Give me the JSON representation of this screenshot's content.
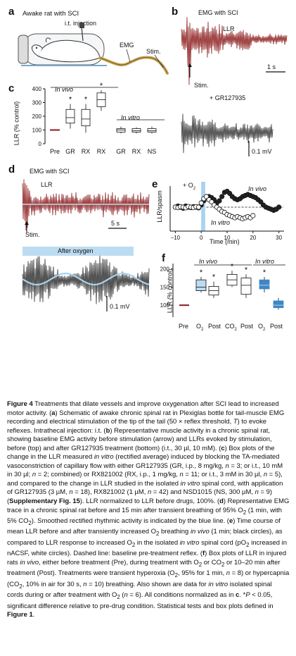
{
  "panels": {
    "a": {
      "letter": "a",
      "title": "Awake rat with SCI",
      "injection": "i.t. injection",
      "emg": "EMG",
      "stim": "Stim."
    },
    "b": {
      "letter": "b",
      "title": "EMG with SCI",
      "llr": "LLR",
      "stim": "Stim.",
      "time_scale": "1 s",
      "drug": "+ GR127935",
      "volt_scale": "0.1 mV"
    },
    "c": {
      "letter": "c",
      "in_vivo": "In vivo",
      "in_vitro": "In vitro",
      "ylabel": "LLR (% control)",
      "yticks": [
        "0",
        "100",
        "200",
        "300",
        "400"
      ],
      "categories": [
        "Pre",
        "GR",
        "RX",
        "RX",
        "GR",
        "RX",
        "NS"
      ],
      "star": "*"
    },
    "d": {
      "letter": "d",
      "title": "EMG with SCI",
      "llr": "LLR",
      "stim": "Stim.",
      "time_scale": "5 s",
      "after": "After oxygen",
      "volt_scale": "0.1 mV"
    },
    "e": {
      "letter": "e",
      "o2": "+ O",
      "o2_sub": "2",
      "in_vivo": "In vivo",
      "in_vitro": "In vitro",
      "ylabel": "LLR/spasm",
      "xlabel": "Time (min)",
      "xticks": [
        "−10",
        "0",
        "10",
        "20",
        "30"
      ]
    },
    "f": {
      "letter": "f",
      "in_vivo": "In vivo",
      "in_vitro": "In vitro",
      "ylabel": "LLR (% control)",
      "yticks": [
        "100",
        "150",
        "200"
      ],
      "cat_pre": "Pre",
      "cat_o2": "O",
      "cat_co2": "CO",
      "sub2": "2",
      "cat_post": "Post",
      "star": "*"
    }
  },
  "chart_data": [
    {
      "type": "box",
      "panel": "c",
      "ylabel": "LLR (% control)",
      "ylim": [
        0,
        400
      ],
      "categories": [
        "Pre",
        "GR",
        "RX",
        "RX",
        "GR",
        "RX",
        "NS"
      ],
      "groups": [
        "In vivo",
        "In vivo",
        "In vivo",
        "In vivo",
        "In vitro",
        "In vitro",
        "In vitro"
      ],
      "boxes": [
        {
          "median": 100
        },
        {
          "whisker_low": 110,
          "q1": 150,
          "median": 190,
          "q3": 250,
          "whisker_high": 290,
          "significant": true
        },
        {
          "whisker_low": 80,
          "q1": 130,
          "median": 180,
          "q3": 250,
          "whisker_high": 290,
          "significant": true
        },
        {
          "whisker_low": 240,
          "q1": 270,
          "median": 320,
          "q3": 370,
          "whisker_high": 390,
          "significant": true
        },
        {
          "whisker_low": 75,
          "q1": 85,
          "median": 100,
          "q3": 110,
          "whisker_high": 125
        },
        {
          "whisker_low": 75,
          "q1": 85,
          "median": 95,
          "q3": 110,
          "whisker_high": 120
        },
        {
          "whisker_low": 75,
          "q1": 85,
          "median": 95,
          "q3": 110,
          "whisker_high": 125
        }
      ]
    },
    {
      "type": "scatter",
      "panel": "e",
      "xlabel": "Time (min)",
      "ylabel": "LLR/spasm",
      "xlim": [
        -12,
        32
      ],
      "series": [
        {
          "name": "In vivo",
          "marker": "black circles",
          "x": [
            -10,
            -9,
            -8,
            -7,
            -6,
            -5,
            -4,
            -3,
            -2,
            -1,
            0,
            1,
            2,
            3,
            4,
            5,
            6,
            7,
            8,
            9,
            10,
            11,
            12,
            13,
            14,
            15,
            16,
            17,
            18,
            19,
            20,
            21,
            22,
            23,
            24,
            25,
            26,
            27,
            28,
            29,
            30
          ],
          "y": [
            1.0,
            1.05,
            1.0,
            0.95,
            1.05,
            1.0,
            0.98,
            1.02,
            1.0,
            0.97,
            1.1,
            1.3,
            1.45,
            1.5,
            1.45,
            1.35,
            1.2,
            1.3,
            1.5,
            1.7,
            1.75,
            1.65,
            1.5,
            1.4,
            1.35,
            1.4,
            1.5,
            1.55,
            1.6,
            1.55,
            1.5,
            1.45,
            1.35,
            1.25,
            1.1,
            1.0,
            0.95,
            0.9,
            0.85,
            0.9,
            1.0
          ]
        },
        {
          "name": "In vitro",
          "marker": "white circles",
          "x": [
            -10,
            -9,
            -8,
            -7,
            -6,
            -5,
            -4,
            -3,
            -2,
            -1,
            0,
            1,
            2,
            3,
            4,
            5,
            6,
            7,
            8,
            9,
            10,
            11,
            12,
            13,
            14,
            15,
            16,
            17,
            18,
            19,
            20
          ],
          "y": [
            1.0,
            0.98,
            1.02,
            1.0,
            0.97,
            1.03,
            1.0,
            0.98,
            1.02,
            1.0,
            1.2,
            1.4,
            1.5,
            1.35,
            1.25,
            1.1,
            1.0,
            0.9,
            0.8,
            0.75,
            0.65,
            0.6,
            0.55,
            0.5,
            0.55,
            0.5,
            0.45,
            0.5,
            0.55,
            0.5,
            0.6
          ]
        }
      ],
      "baseline": 1.0
    },
    {
      "type": "box",
      "panel": "f",
      "ylabel": "LLR (% control)",
      "ylim": [
        75,
        215
      ],
      "categories": [
        "Pre",
        "O2",
        "Post",
        "CO2",
        "Post",
        "O2",
        "Post"
      ],
      "groups": [
        "In vivo",
        "In vivo",
        "In vivo",
        "In vivo",
        "In vivo",
        "In vitro",
        "In vitro"
      ],
      "boxes": [
        {
          "median": 100
        },
        {
          "whisker_low": 135,
          "q1": 140,
          "median": 150,
          "q3": 170,
          "whisker_high": 178,
          "significant": true
        },
        {
          "whisker_low": 120,
          "q1": 128,
          "median": 140,
          "q3": 152,
          "whisker_high": 165,
          "significant": true
        },
        {
          "whisker_low": 150,
          "q1": 155,
          "median": 170,
          "q3": 185,
          "whisker_high": 195,
          "significant": true
        },
        {
          "whisker_low": 120,
          "q1": 130,
          "median": 155,
          "q3": 175,
          "whisker_high": 185,
          "significant": true
        },
        {
          "whisker_low": 135,
          "q1": 145,
          "median": 155,
          "q3": 170,
          "whisker_high": 178,
          "significant": true
        },
        {
          "whisker_low": 88,
          "q1": 93,
          "median": 100,
          "q3": 112,
          "whisker_high": 120
        }
      ]
    }
  ],
  "caption": {
    "title": "Figure 4",
    "title_text": " Treatments that dilate vessels and improve oxygenation after SCI lead to increased motor activity. (",
    "s_a": "a",
    "t_a": ") Schematic of awake chronic spinal rat in Plexiglas bottle for tail-muscle EMG recording and electrical stimulation of the tip of the tail (50 × reflex threshold, ",
    "t_T": "T",
    "t_a2": ") to evoke reflexes. Intrathecal injection: i.t. (",
    "s_b": "b",
    "t_b": ") Representative muscle activity in a chronic spinal rat, showing baseline EMG activity before stimulation (arrow) and LLRs evoked by stimulation, before (top) and after GR127935 treatment (bottom) (i.t., 30 µl, 10 mM). (",
    "s_c": "c",
    "t_c": ") Box plots of the change in the LLR measured ",
    "t_c_iv": "in vitro",
    "t_c2": " (rectified average) induced by blocking the TA-mediated vasoconstriction of capillary flow with either GR127935 (GR, i.p., 8 mg/kg, ",
    "n1": "n",
    "t_c3": " = 3; or i.t., 10 mM in 30 µl; ",
    "n2": "n",
    "t_c4": " = 2; combined) or RX821002 (RX, i.p., 1 mg/kg, ",
    "n3": "n",
    "t_c5": " = 11; or i.t., 3 mM in 30 µl, ",
    "n4": "n",
    "t_c6": " = 5), and compared to the change in LLR studied in the isolated ",
    "t_c_iv2": "in vitro",
    "t_c7": " spinal cord, with application of GR127935 (3 µM, ",
    "n5": "n",
    "t_c8": " = 18), RX821002 (1 µM, ",
    "n6": "n",
    "t_c9": " = 42) and NSD1015 (NS, 300 µM, ",
    "n7": "n",
    "t_c10": " = 9) (",
    "t_supp": "Supplementary Fig. 15",
    "t_c11": "). LLR normalized to LLR before drugs, 100%. (",
    "s_d": "d",
    "t_d": ") Representative EMG trace in a chronic spinal rat before and 15 min after transient breathing of 95% O",
    "t_d_sub": "2",
    "t_d2": " (1 min, with 5% CO",
    "t_d_sub2": "2",
    "t_d3": "). Smoothed rectified rhythmic activity is indicated by the blue line. (",
    "s_e": "e",
    "t_e": ") Time course of mean LLR before and after transiently increased O",
    "t_e_sub": "2",
    "t_e2": " breathing ",
    "t_e_iv": "in vivo",
    "t_e3": " (1 min; black circles), as compared to LLR response to increased O",
    "t_e_sub2": "2",
    "t_e4": " in the isolated ",
    "t_e_iv2": "in vitro",
    "t_e5": " spinal cord (pO",
    "t_e_sub3": "2",
    "t_e6": " increased in nACSF, white circles). Dashed line: baseline pre-treatment reflex. (",
    "s_f": "f",
    "t_f": ") Box plots of LLR in injured rats ",
    "t_f_iv": "in vivo",
    "t_f2": ", either before treatment (Pre), during treatment with O",
    "t_f_sub": "2",
    "t_f3": " or CO",
    "t_f_sub2": "2",
    "t_f4": " or 10–20 min after treatment (Post). Treatments were transient hyperoxia (O",
    "t_f_sub3": "2",
    "t_f5": ", 95% for 1 min, ",
    "n8": "n",
    "t_f6": " = 8) or hypercapnia (CO",
    "t_f_sub4": "2",
    "t_f7": ", 10% in air for 30 s, ",
    "n9": "n",
    "t_f8": " = 10) breathing. Also shown are data for ",
    "t_f_iv2": "in vitro",
    "t_f9": " isolated spinal cords during or after treatment with O",
    "t_f_sub5": "2",
    "t_f10": " (",
    "n10": "n",
    "t_f11": " = 6). All conditions normalized as in ",
    "t_f_c": "c",
    "t_f12": ". *",
    "t_P": "P",
    "t_f13": " < 0.05, significant difference relative to pre-drug condition. Statistical tests and box plots defined in ",
    "t_fig1": "Figure 1",
    "t_f14": "."
  }
}
